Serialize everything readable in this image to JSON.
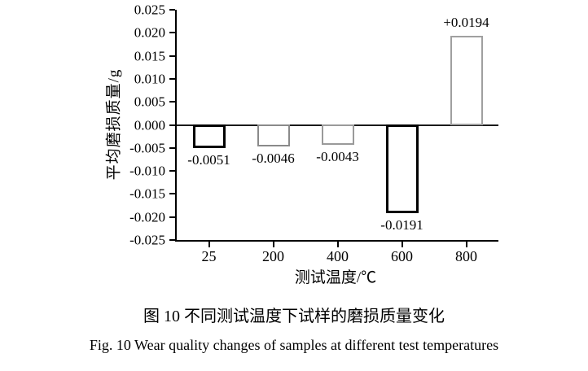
{
  "chart_data": {
    "type": "bar",
    "title": "",
    "categories": [
      "25",
      "200",
      "400",
      "600",
      "800"
    ],
    "values": [
      -0.0051,
      -0.0046,
      -0.0043,
      -0.0191,
      0.0194
    ],
    "bar_labels": [
      "-0.0051",
      "-0.0046",
      "-0.0043",
      "-0.0191",
      "+0.0194"
    ],
    "bar_stroke_colors": [
      "#000000",
      "#8a8a8a",
      "#9a9a9a",
      "#000000",
      "#a0a0a0"
    ],
    "bar_stroke_widths": [
      3,
      2,
      2,
      3,
      2
    ],
    "xlabel": "测试温度/℃",
    "ylabel": "平均磨损质量/g",
    "ylim": [
      -0.025,
      0.025
    ],
    "ytick_step": 0.005,
    "ytick_decimals": 3,
    "grid": false,
    "legend": false
  },
  "figure": {
    "caption_zh": "图 10  不同测试温度下试样的磨损质量变化",
    "caption_en": "Fig. 10   Wear quality changes of samples at different test temperatures"
  }
}
